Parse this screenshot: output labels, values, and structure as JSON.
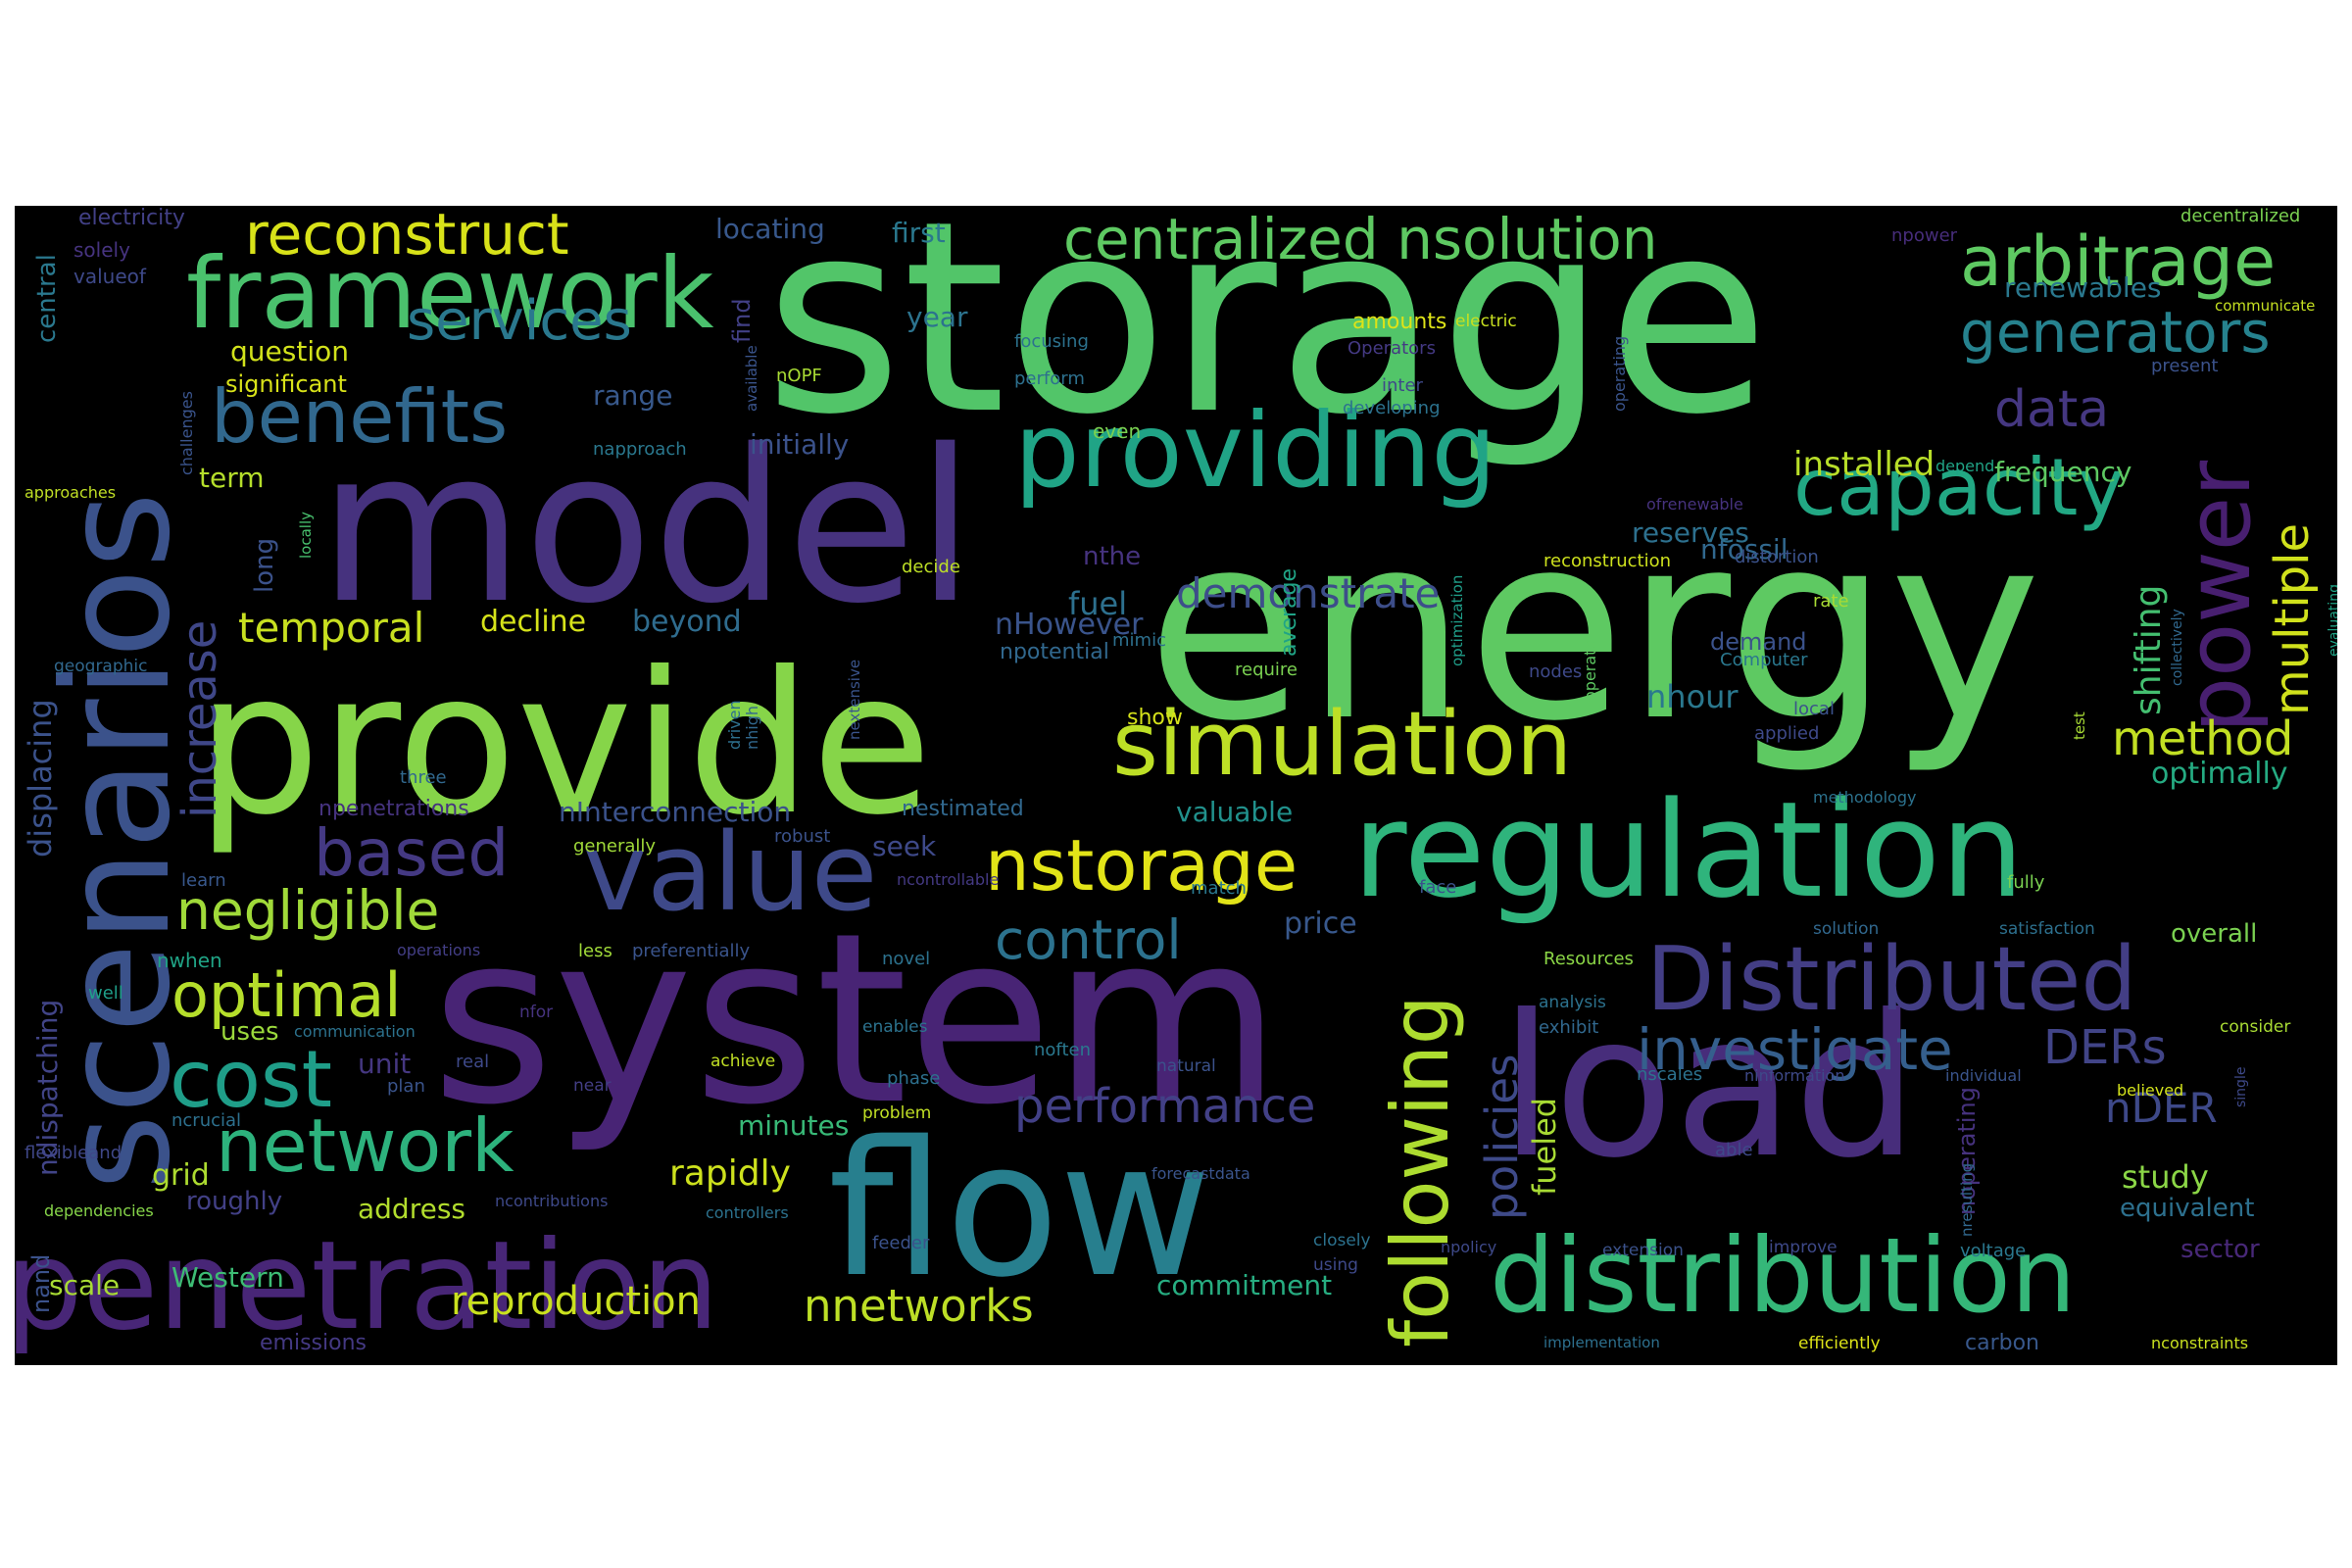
{
  "background": "#000000",
  "page_background": "#ffffff",
  "colormap": "viridis",
  "words": [
    {
      "text": "storage",
      "color": "#52c569"
    },
    {
      "text": "energy",
      "color": "#5ec962"
    },
    {
      "text": "model",
      "color": "#46327e"
    },
    {
      "text": "system",
      "color": "#482475"
    },
    {
      "text": "provide",
      "color": "#86d549"
    },
    {
      "text": "load",
      "color": "#472d7b"
    },
    {
      "text": "regulation",
      "color": "#2fb47c"
    },
    {
      "text": "scenarios",
      "color": "#3b528b"
    },
    {
      "text": "flow",
      "color": "#277f8e"
    },
    {
      "text": "penetration",
      "color": "#482677"
    },
    {
      "text": "distribution",
      "color": "#35b779"
    },
    {
      "text": "framework",
      "color": "#4ac16d"
    },
    {
      "text": "providing",
      "color": "#20a486"
    },
    {
      "text": "value",
      "color": "#3e4989"
    },
    {
      "text": "simulation",
      "color": "#bddf26"
    },
    {
      "text": "Distributed",
      "color": "#433e85"
    },
    {
      "text": "following",
      "color": "#addc30"
    },
    {
      "text": "arbitrage",
      "color": "#5ec962"
    },
    {
      "text": "capacity",
      "color": "#22a884"
    },
    {
      "text": "benefits",
      "color": "#31688e"
    },
    {
      "text": "network",
      "color": "#2db27d"
    },
    {
      "text": "cost",
      "color": "#1f9e89"
    },
    {
      "text": "power",
      "color": "#481f70"
    },
    {
      "text": "centralized nsolution",
      "color": "#5ec962"
    },
    {
      "text": "reconstruct",
      "color": "#d8e219"
    },
    {
      "text": "nstorage",
      "color": "#e2e418"
    },
    {
      "text": "generators",
      "color": "#26828e"
    },
    {
      "text": "investigate",
      "color": "#355f8d"
    },
    {
      "text": "optimal",
      "color": "#b5de2b"
    },
    {
      "text": "based",
      "color": "#443983"
    },
    {
      "text": "negligible",
      "color": "#a0da39"
    },
    {
      "text": "services",
      "color": "#2a788e"
    },
    {
      "text": "control",
      "color": "#2c728e"
    },
    {
      "text": "performance",
      "color": "#424086"
    },
    {
      "text": "policies",
      "color": "#3e4a89"
    },
    {
      "text": "multiple",
      "color": "#d0e11c"
    },
    {
      "text": "increase",
      "color": "#3f4788"
    },
    {
      "text": "data",
      "color": "#453781"
    },
    {
      "text": "method",
      "color": "#c2df23"
    },
    {
      "text": "DERs",
      "color": "#414487"
    },
    {
      "text": "reproduction",
      "color": "#cae11f"
    },
    {
      "text": "nnetworks",
      "color": "#bddf26"
    },
    {
      "text": "demonstrate",
      "color": "#3d4e8a"
    },
    {
      "text": "temporal",
      "color": "#c8e020"
    },
    {
      "text": "displacing",
      "color": "#3b528b"
    },
    {
      "text": "nDER",
      "color": "#3e4989"
    },
    {
      "text": "shifting",
      "color": "#44bf70"
    },
    {
      "text": "rapidly",
      "color": "#cde11d"
    },
    {
      "text": "fueled",
      "color": "#a8db34"
    },
    {
      "text": "installed",
      "color": "#b8de29"
    },
    {
      "text": "frequency",
      "color": "#5ec962"
    },
    {
      "text": "optimally",
      "color": "#25ab82"
    },
    {
      "text": "study",
      "color": "#8bd646"
    },
    {
      "text": "price",
      "color": "#38588c"
    },
    {
      "text": "decline",
      "color": "#d5e21a"
    },
    {
      "text": "beyond",
      "color": "#2f6c8e"
    },
    {
      "text": "nhour",
      "color": "#2a788e"
    },
    {
      "text": "fuel",
      "color": "#2d708e"
    },
    {
      "text": "nHowever",
      "color": "#3a548c"
    },
    {
      "text": "nfossil",
      "color": "#31688e"
    },
    {
      "text": "reserves",
      "color": "#2d708e"
    },
    {
      "text": "ndispatching",
      "color": "#414487"
    },
    {
      "text": "locating",
      "color": "#38588c"
    },
    {
      "text": "first",
      "color": "#2a788e"
    },
    {
      "text": "question",
      "color": "#d2e21b"
    },
    {
      "text": "range",
      "color": "#38598c"
    },
    {
      "text": "year",
      "color": "#2c738e"
    },
    {
      "text": "initially",
      "color": "#3b528b"
    },
    {
      "text": "significant",
      "color": "#d8e219"
    },
    {
      "text": "term",
      "color": "#b5de2b"
    },
    {
      "text": "long",
      "color": "#3b528b"
    },
    {
      "text": "uses",
      "color": "#9bd93c"
    },
    {
      "text": "unit",
      "color": "#453781"
    },
    {
      "text": "grid",
      "color": "#addc30"
    },
    {
      "text": "address",
      "color": "#b2dd2d"
    },
    {
      "text": "roughly",
      "color": "#424086"
    },
    {
      "text": "scale",
      "color": "#a8db34"
    },
    {
      "text": "Western",
      "color": "#3dbc74"
    },
    {
      "text": "minutes",
      "color": "#38b977"
    },
    {
      "text": "commitment",
      "color": "#27ad81"
    },
    {
      "text": "valuable",
      "color": "#21918c"
    },
    {
      "text": "nInterconnection",
      "color": "#3b528b"
    },
    {
      "text": "seek",
      "color": "#3e4989"
    },
    {
      "text": "demand",
      "color": "#3b528b"
    },
    {
      "text": "nthe",
      "color": "#46337f"
    },
    {
      "text": "equivalent",
      "color": "#2d708e"
    },
    {
      "text": "sector",
      "color": "#482878"
    },
    {
      "text": "overall",
      "color": "#7ad151"
    },
    {
      "text": "noperating",
      "color": "#46327e"
    },
    {
      "text": "renewables",
      "color": "#2a788e"
    },
    {
      "text": "electricity",
      "color": "#424086"
    },
    {
      "text": "central",
      "color": "#2a788e"
    },
    {
      "text": "find",
      "color": "#424086"
    },
    {
      "text": "average",
      "color": "#20a486"
    },
    {
      "text": "nand",
      "color": "#3b528b"
    },
    {
      "text": "npotential",
      "color": "#31688e"
    },
    {
      "text": "npenetrations",
      "color": "#46337f"
    },
    {
      "text": "nestimated",
      "color": "#31688e"
    },
    {
      "text": "emissions",
      "color": "#443983"
    },
    {
      "text": "carbon",
      "color": "#38588c"
    },
    {
      "text": "decentralized",
      "color": "#7ad151"
    },
    {
      "text": "npower",
      "color": "#472d7b"
    },
    {
      "text": "communicate",
      "color": "#c5e021"
    },
    {
      "text": "present",
      "color": "#3b528b"
    },
    {
      "text": "solely",
      "color": "#46337f"
    },
    {
      "text": "valueof",
      "color": "#3e4989"
    },
    {
      "text": "challenges",
      "color": "#3a548c"
    },
    {
      "text": "approaches",
      "color": "#c0df25"
    },
    {
      "text": "locally",
      "color": "#48c16e"
    },
    {
      "text": "geographic",
      "color": "#31688e"
    },
    {
      "text": "flexibleand",
      "color": "#3f4788"
    },
    {
      "text": "nwhen",
      "color": "#20a486"
    },
    {
      "text": "ncrucial",
      "color": "#2d708e"
    },
    {
      "text": "dependencies",
      "color": "#86d549"
    },
    {
      "text": "three",
      "color": "#31688e"
    },
    {
      "text": "generally",
      "color": "#a0da39"
    },
    {
      "text": "learn",
      "color": "#38588c"
    },
    {
      "text": "well",
      "color": "#1f9e89"
    },
    {
      "text": "nOPF",
      "color": "#a8db34"
    },
    {
      "text": "available",
      "color": "#3a548c"
    },
    {
      "text": "focusing",
      "color": "#2c728e"
    },
    {
      "text": "perform",
      "color": "#2d708e"
    },
    {
      "text": "even",
      "color": "#7ad151"
    },
    {
      "text": "napproach",
      "color": "#2a788e"
    },
    {
      "text": "amounts",
      "color": "#dde318"
    },
    {
      "text": "electric",
      "color": "#c8e020"
    },
    {
      "text": "Operators",
      "color": "#443983"
    },
    {
      "text": "inter",
      "color": "#3e4989"
    },
    {
      "text": "developing",
      "color": "#2c728e"
    },
    {
      "text": "operating",
      "color": "#3a548c"
    },
    {
      "text": "depend",
      "color": "#20a486"
    },
    {
      "text": "ofrenewable",
      "color": "#46327e"
    },
    {
      "text": "reconstruction",
      "color": "#cde11d"
    },
    {
      "text": "distortion",
      "color": "#3b528b"
    },
    {
      "text": "decide",
      "color": "#bddf26"
    },
    {
      "text": "optimization",
      "color": "#1f9e89"
    },
    {
      "text": "rate",
      "color": "#a8db34"
    },
    {
      "text": "collectively",
      "color": "#31688e"
    },
    {
      "text": "evaluating",
      "color": "#20a486"
    },
    {
      "text": "nextensive",
      "color": "#3a548c"
    },
    {
      "text": "mimic",
      "color": "#2d708e"
    },
    {
      "text": "require",
      "color": "#7ad151"
    },
    {
      "text": "Computer",
      "color": "#2a788e"
    },
    {
      "text": "nodes",
      "color": "#3e4989"
    },
    {
      "text": "operate",
      "color": "#5ec962"
    },
    {
      "text": "local",
      "color": "#3b528b"
    },
    {
      "text": "test",
      "color": "#a8db34"
    },
    {
      "text": "applied",
      "color": "#3e4989"
    },
    {
      "text": "show",
      "color": "#d5e21a"
    },
    {
      "text": "driven",
      "color": "#2d708e"
    },
    {
      "text": "nhigh",
      "color": "#31688e"
    },
    {
      "text": "robust",
      "color": "#3b528b"
    },
    {
      "text": "methodology",
      "color": "#2c728e"
    },
    {
      "text": "ncontrollable",
      "color": "#443983"
    },
    {
      "text": "match",
      "color": "#2a788e"
    },
    {
      "text": "face",
      "color": "#3b528b"
    },
    {
      "text": "fully",
      "color": "#7ad151"
    },
    {
      "text": "solution",
      "color": "#31688e"
    },
    {
      "text": "satisfaction",
      "color": "#2d708e"
    },
    {
      "text": "Resources",
      "color": "#8bd646"
    },
    {
      "text": "operations",
      "color": "#433e85"
    },
    {
      "text": "less",
      "color": "#a0da39"
    },
    {
      "text": "preferentially",
      "color": "#3a548c"
    },
    {
      "text": "novel",
      "color": "#2c728e"
    },
    {
      "text": "analysis",
      "color": "#2c728e"
    },
    {
      "text": "exhibit",
      "color": "#31688e"
    },
    {
      "text": "consider",
      "color": "#a8db34"
    },
    {
      "text": "nfor",
      "color": "#46337f"
    },
    {
      "text": "communication",
      "color": "#2c728e"
    },
    {
      "text": "real",
      "color": "#3e4989"
    },
    {
      "text": "plan",
      "color": "#3a548c"
    },
    {
      "text": "near",
      "color": "#433e85"
    },
    {
      "text": "achieve",
      "color": "#c0df25"
    },
    {
      "text": "enables",
      "color": "#2c728e"
    },
    {
      "text": "phase",
      "color": "#2d708e"
    },
    {
      "text": "problem",
      "color": "#c0df25"
    },
    {
      "text": "noften",
      "color": "#2a788e"
    },
    {
      "text": "natural",
      "color": "#3b528b"
    },
    {
      "text": "nscales",
      "color": "#2c728e"
    },
    {
      "text": "ninformation",
      "color": "#3e4989"
    },
    {
      "text": "individual",
      "color": "#3a548c"
    },
    {
      "text": "believed",
      "color": "#d2e21b"
    },
    {
      "text": "single",
      "color": "#3e4989"
    },
    {
      "text": "able",
      "color": "#3e4989"
    },
    {
      "text": "nresulting",
      "color": "#31688e"
    },
    {
      "text": "ncontributions",
      "color": "#3e4989"
    },
    {
      "text": "controllers",
      "color": "#2c728e"
    },
    {
      "text": "forecastdata",
      "color": "#3a548c"
    },
    {
      "text": "feeder",
      "color": "#3b528b"
    },
    {
      "text": "closely",
      "color": "#2c728e"
    },
    {
      "text": "using",
      "color": "#3e4989"
    },
    {
      "text": "npolicy",
      "color": "#3e4989"
    },
    {
      "text": "extension",
      "color": "#3b528b"
    },
    {
      "text": "improve",
      "color": "#3e4989"
    },
    {
      "text": "voltage",
      "color": "#2a788e"
    },
    {
      "text": "implementation",
      "color": "#2d708e"
    },
    {
      "text": "efficiently",
      "color": "#dde318"
    },
    {
      "text": "nconstraints",
      "color": "#c8e020"
    }
  ]
}
